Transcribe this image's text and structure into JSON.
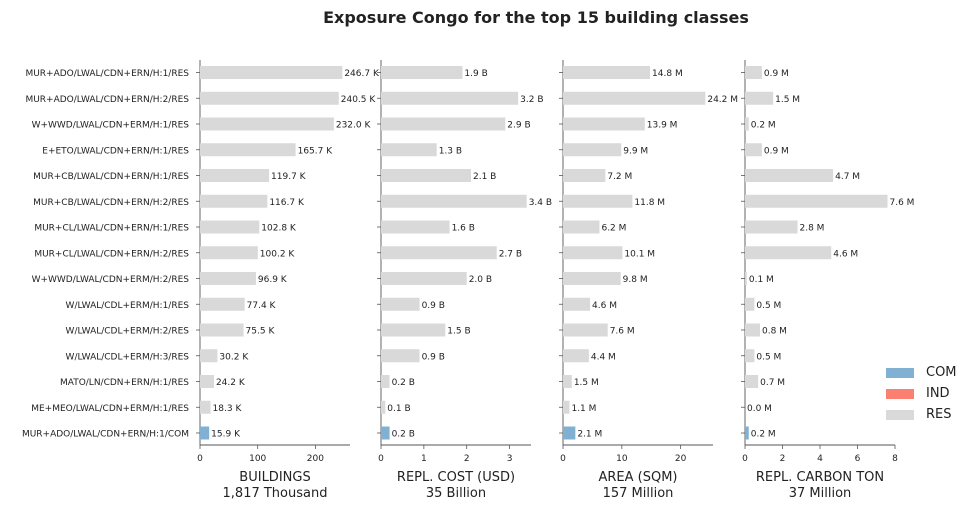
{
  "chart_data": {
    "type": "bar",
    "title": "Exposure Congo for the top 15 building classes",
    "categories": [
      "MUR+ADO/LWAL/CDN+ERN/H:1/RES",
      "MUR+ADO/LWAL/CDN+ERN/H:2/RES",
      "W+WWD/LWAL/CDN+ERM/H:1/RES",
      "E+ETO/LWAL/CDN+ERN/H:1/RES",
      "MUR+CB/LWAL/CDN+ERN/H:1/RES",
      "MUR+CB/LWAL/CDN+ERN/H:2/RES",
      "MUR+CL/LWAL/CDN+ERN/H:1/RES",
      "MUR+CL/LWAL/CDN+ERN/H:2/RES",
      "W+WWD/LWAL/CDN+ERM/H:2/RES",
      "W/LWAL/CDL+ERM/H:1/RES",
      "W/LWAL/CDL+ERM/H:2/RES",
      "W/LWAL/CDL+ERM/H:3/RES",
      "MATO/LN/CDN+ERN/H:1/RES",
      "ME+MEO/LWAL/CDN+ERM/H:1/RES",
      "MUR+ADO/LWAL/CDN+ERN/H:1/COM"
    ],
    "occupancy": [
      "RES",
      "RES",
      "RES",
      "RES",
      "RES",
      "RES",
      "RES",
      "RES",
      "RES",
      "RES",
      "RES",
      "RES",
      "RES",
      "RES",
      "COM"
    ],
    "legend": {
      "placement": "right",
      "entries": [
        {
          "label": "COM",
          "color": "#80b1d3"
        },
        {
          "label": "IND",
          "color": "#fb8072"
        },
        {
          "label": "RES",
          "color": "#d9d9d9"
        }
      ]
    },
    "panels": [
      {
        "xlabel": "BUILDINGS",
        "total": "1,817 Thousand",
        "xlim": [
          0,
          260
        ],
        "ticks": [
          0,
          100,
          200
        ],
        "values": [
          246.7,
          240.5,
          232.0,
          165.7,
          119.7,
          116.7,
          102.8,
          100.2,
          96.9,
          77.4,
          75.5,
          30.2,
          24.2,
          18.3,
          15.9
        ],
        "labels": [
          "246.7 K",
          "240.5 K",
          "232.0 K",
          "165.7 K",
          "119.7 K",
          "116.7 K",
          "102.8 K",
          "100.2 K",
          "96.9 K",
          "77.4 K",
          "75.5 K",
          "30.2 K",
          "24.2 K",
          "18.3 K",
          "15.9 K"
        ]
      },
      {
        "xlabel": "REPL. COST (USD)",
        "total": "35 Billion",
        "xlim": [
          0,
          3.5
        ],
        "ticks": [
          0,
          1,
          2,
          3
        ],
        "values": [
          1.9,
          3.2,
          2.9,
          1.3,
          2.1,
          3.4,
          1.6,
          2.7,
          2.0,
          0.9,
          1.5,
          0.9,
          0.2,
          0.1,
          0.2
        ],
        "labels": [
          "1.9 B",
          "3.2 B",
          "2.9 B",
          "1.3 B",
          "2.1 B",
          "3.4 B",
          "1.6 B",
          "2.7 B",
          "2.0 B",
          "0.9 B",
          "1.5 B",
          "0.9 B",
          "0.2 B",
          "0.1 B",
          "0.2 B"
        ]
      },
      {
        "xlabel": "AREA (SQM)",
        "total": "157 Million",
        "xlim": [
          0,
          25.5
        ],
        "ticks": [
          0,
          10,
          20
        ],
        "values": [
          14.8,
          24.2,
          13.9,
          9.9,
          7.2,
          11.8,
          6.2,
          10.1,
          9.8,
          4.6,
          7.6,
          4.4,
          1.5,
          1.1,
          2.1
        ],
        "labels": [
          "14.8 M",
          "24.2 M",
          "13.9 M",
          "9.9 M",
          "7.2 M",
          "11.8 M",
          "6.2 M",
          "10.1 M",
          "9.8 M",
          "4.6 M",
          "7.6 M",
          "4.4 M",
          "1.5 M",
          "1.1 M",
          "2.1 M"
        ]
      },
      {
        "xlabel": "REPL. CARBON TON",
        "total": "37 Million",
        "xlim": [
          0,
          8
        ],
        "ticks": [
          0,
          2,
          4,
          6,
          8
        ],
        "values": [
          0.9,
          1.5,
          0.2,
          0.9,
          4.7,
          7.6,
          2.8,
          4.6,
          0.1,
          0.5,
          0.8,
          0.5,
          0.7,
          0.0,
          0.2
        ],
        "labels": [
          "0.9 M",
          "1.5 M",
          "0.2 M",
          "0.9 M",
          "4.7 M",
          "7.6 M",
          "2.8 M",
          "4.6 M",
          "0.1 M",
          "0.5 M",
          "0.8 M",
          "0.5 M",
          "0.7 M",
          "0.0 M",
          "0.2 M"
        ]
      }
    ]
  }
}
